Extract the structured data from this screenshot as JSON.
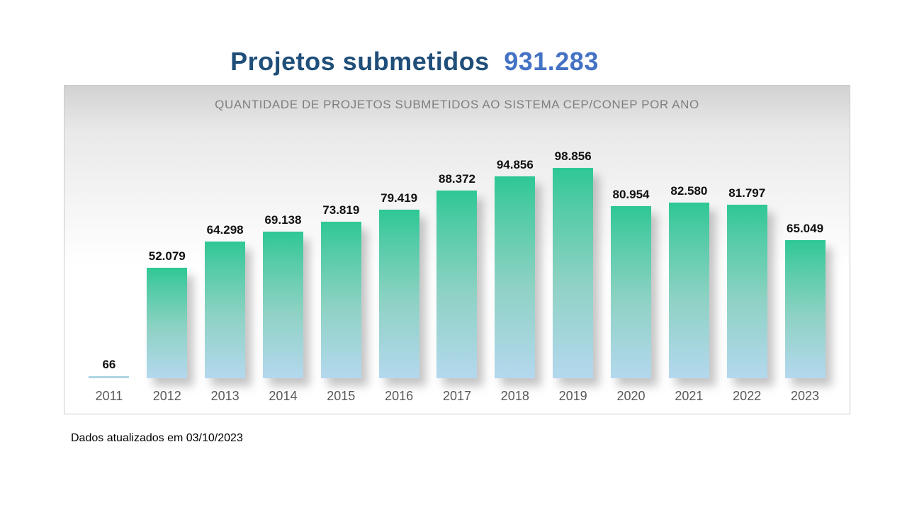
{
  "title": {
    "text": "Projetos submetidos",
    "total": "931.283"
  },
  "footer": {
    "note": "Dados atualizados em 03/10/2023"
  },
  "colors": {
    "title_text": "#1f4e79",
    "title_total": "#4472c4",
    "subtitle_gray": "#7f7f7f",
    "axis_label_gray": "#595959",
    "bar_gradient_top": "#2ec795",
    "bar_gradient_bottom": "#b4d8ee",
    "chart_bg_top": "#d2d2d2",
    "chart_bg_bottom": "#ffffff"
  },
  "chart_data": {
    "type": "bar",
    "title": "QUANTIDADE DE PROJETOS SUBMETIDOS AO SISTEMA CEP/CONEP POR ANO",
    "categories": [
      "2011",
      "2012",
      "2013",
      "2014",
      "2015",
      "2016",
      "2017",
      "2018",
      "2019",
      "2020",
      "2021",
      "2022",
      "2023"
    ],
    "values": [
      66,
      52079,
      64298,
      69138,
      73819,
      79419,
      88372,
      94856,
      98856,
      80954,
      82580,
      81797,
      65049
    ],
    "value_labels": [
      "66",
      "52.079",
      "64.298",
      "69.138",
      "73.819",
      "79.419",
      "88.372",
      "94.856",
      "98.856",
      "80.954",
      "82.580",
      "81.797",
      "65.049"
    ],
    "total": 931283,
    "xlabel": "",
    "ylabel": "",
    "ylim": [
      0,
      100000
    ],
    "grid": false,
    "legend": false
  }
}
